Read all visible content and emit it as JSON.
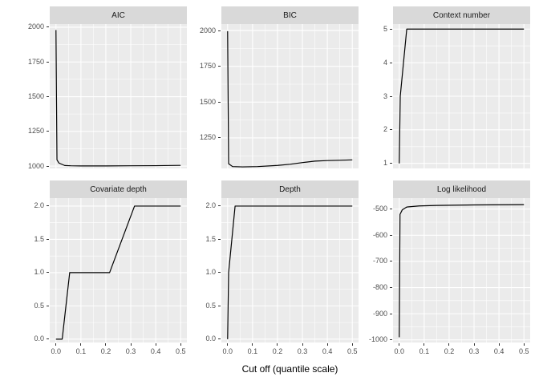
{
  "figure": {
    "background": "#FFFFFF",
    "panel_background": "#EBEBEB",
    "grid_color": "#FFFFFF",
    "strip_background": "#D9D9D9",
    "strip_text_color": "#1A1A1A",
    "tick_label_color": "#4D4D4D",
    "line_color": "#000000"
  },
  "chart_data": {
    "type": "line",
    "faceted": true,
    "facet_layout": {
      "rows": 2,
      "cols": 3
    },
    "x_axis_title": "Cut off (quantile scale)",
    "xlim": [
      -0.025,
      0.525
    ],
    "x_ticks": [
      0,
      0.1,
      0.2,
      0.3,
      0.4,
      0.5
    ],
    "x_tick_labels": [
      "0.0",
      "0.1",
      "0.2",
      "0.3",
      "0.4",
      "0.5"
    ],
    "grid": true,
    "legend": "none",
    "panels": [
      {
        "title": "AIC",
        "ylim": [
          983,
          2023
        ],
        "yticks": [
          1000,
          1250,
          1500,
          1750,
          2000
        ],
        "ytick_labels": [
          "1000",
          "1250",
          "1500",
          "1750",
          "2000"
        ],
        "x": [
          0,
          0.004,
          0.012,
          0.035,
          0.06,
          0.1,
          0.2,
          0.3,
          0.4,
          0.5
        ],
        "y": [
          1980,
          1045,
          1022,
          1004,
          1002,
          1001,
          1001,
          1002,
          1003,
          1005
        ]
      },
      {
        "title": "BIC",
        "ylim": [
          1037,
          2045
        ],
        "yticks": [
          1250,
          1500,
          1750,
          2000
        ],
        "ytick_labels": [
          "1250",
          "1500",
          "1750",
          "2000"
        ],
        "x": [
          0,
          0.004,
          0.02,
          0.06,
          0.12,
          0.2,
          0.25,
          0.3,
          0.35,
          0.4,
          0.45,
          0.5
        ],
        "y": [
          1995,
          1070,
          1050,
          1048,
          1050,
          1058,
          1066,
          1078,
          1088,
          1092,
          1094,
          1097
        ]
      },
      {
        "title": "Context number",
        "ylim": [
          0.85,
          5.15
        ],
        "yticks": [
          1,
          2,
          3,
          4,
          5
        ],
        "ytick_labels": [
          "1",
          "2",
          "3",
          "4",
          "5"
        ],
        "x": [
          0,
          0.004,
          0.03,
          0.5
        ],
        "y": [
          1,
          3,
          5,
          5
        ]
      },
      {
        "title": "Covariate depth",
        "ylim": [
          -0.05,
          2.12
        ],
        "yticks": [
          0,
          0.5,
          1,
          1.5,
          2
        ],
        "ytick_labels": [
          "0.0",
          "0.5",
          "1.0",
          "1.5",
          "2.0"
        ],
        "x": [
          0,
          0.025,
          0.055,
          0.215,
          0.315,
          0.5
        ],
        "y": [
          0,
          0,
          1,
          1,
          2,
          2
        ]
      },
      {
        "title": "Depth",
        "ylim": [
          -0.05,
          2.12
        ],
        "yticks": [
          0,
          0.5,
          1,
          1.5,
          2
        ],
        "ytick_labels": [
          "0.0",
          "0.5",
          "1.0",
          "1.5",
          "2.0"
        ],
        "x": [
          0,
          0.004,
          0.03,
          0.5
        ],
        "y": [
          0,
          1,
          2,
          2
        ]
      },
      {
        "title": "Log likelihood",
        "ylim": [
          -1010,
          -458
        ],
        "yticks": [
          -1000,
          -900,
          -800,
          -700,
          -600,
          -500
        ],
        "ytick_labels": [
          "-1000",
          "-900",
          "-800",
          "-700",
          "-600",
          "-500"
        ],
        "x": [
          0,
          0.003,
          0.012,
          0.03,
          0.08,
          0.15,
          0.3,
          0.5
        ],
        "y": [
          -990,
          -520,
          -503,
          -492,
          -488,
          -486,
          -484,
          -483
        ]
      }
    ]
  }
}
